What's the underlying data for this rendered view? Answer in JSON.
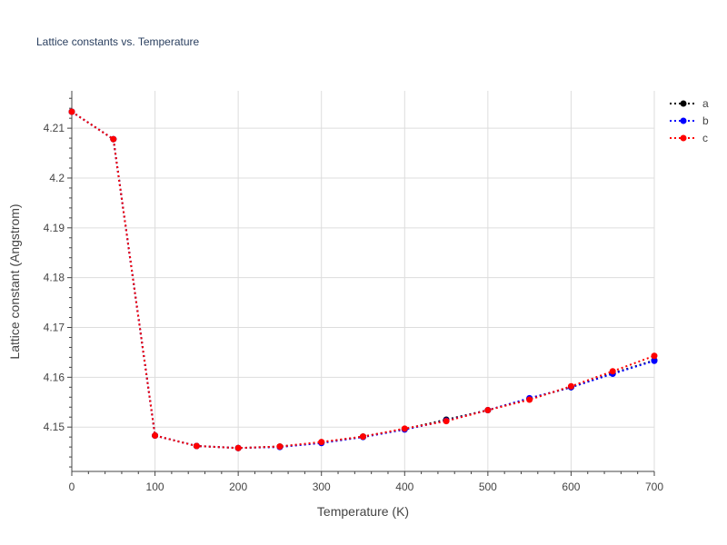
{
  "chart_data": {
    "type": "line",
    "title": "Lattice constants vs. Temperature",
    "xlabel": "Temperature (K)",
    "ylabel": "Lattice constant (Angstrom)",
    "xlim": [
      0,
      700
    ],
    "ylim": [
      4.1411,
      4.2175
    ],
    "x_ticks": [
      0,
      100,
      200,
      300,
      400,
      500,
      600,
      700
    ],
    "x_tick_labels": [
      "0",
      "100",
      "200",
      "300",
      "400",
      "500",
      "600",
      "700"
    ],
    "y_ticks": [
      4.15,
      4.16,
      4.17,
      4.18,
      4.19,
      4.2,
      4.21
    ],
    "y_tick_labels": [
      "4.15",
      "4.16",
      "4.17",
      "4.18",
      "4.19",
      "4.2",
      "4.21"
    ],
    "grid": true,
    "legend_position": "top-right",
    "x": [
      0,
      50,
      100,
      150,
      200,
      250,
      300,
      350,
      400,
      450,
      500,
      550,
      600,
      650,
      700
    ],
    "series": [
      {
        "name": "a",
        "color": "#000000",
        "values": [
          4.2133,
          4.2078,
          4.1483,
          4.1462,
          4.1458,
          4.1461,
          4.1469,
          4.1481,
          4.1496,
          4.1515,
          4.1534,
          4.1557,
          4.158,
          4.1608,
          4.1634
        ]
      },
      {
        "name": "b",
        "color": "#0000ff",
        "values": [
          4.2133,
          4.2078,
          4.1483,
          4.1462,
          4.1458,
          4.146,
          4.1468,
          4.148,
          4.1495,
          4.1513,
          4.1534,
          4.1558,
          4.158,
          4.1607,
          4.1633
        ]
      },
      {
        "name": "c",
        "color": "#ff0000",
        "values": [
          4.2133,
          4.2078,
          4.1483,
          4.1462,
          4.1458,
          4.1461,
          4.147,
          4.1481,
          4.1497,
          4.1512,
          4.1534,
          4.1555,
          4.1582,
          4.1612,
          4.1643
        ]
      }
    ]
  }
}
